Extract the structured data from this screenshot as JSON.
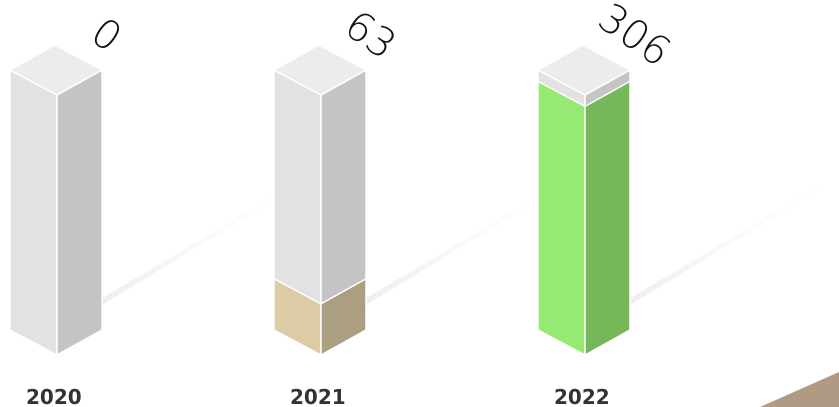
{
  "chart_data": {
    "type": "bar",
    "categories": [
      "2020",
      "2021",
      "2022"
    ],
    "values": [
      0,
      63,
      306
    ],
    "colors": [
      "#9a9a9a",
      "#dccba5",
      "#96ea72"
    ],
    "ylim": [
      0,
      320
    ]
  }
}
